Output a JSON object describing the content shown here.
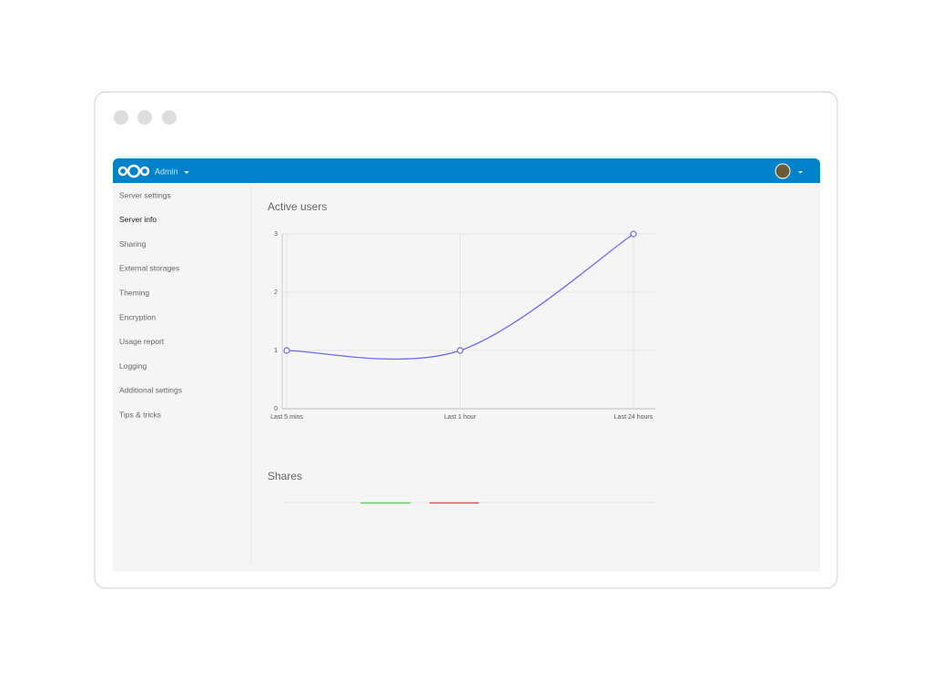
{
  "header": {
    "app": "Admin"
  },
  "sidebar": {
    "items": [
      "Server settings",
      "Server info",
      "Sharing",
      "External storages",
      "Theming",
      "Encryption",
      "Usage report",
      "Logging",
      "Additional settings",
      "Tips & tricks"
    ]
  },
  "chart_data": {
    "type": "line",
    "title": "Active users",
    "categories": [
      "Last 5 mins",
      "Last 1 hour",
      "Last 24 hours"
    ],
    "values": [
      1,
      1,
      3
    ],
    "color": "#6b6bef",
    "ylim": [
      0,
      3
    ],
    "yticks": [
      0,
      1,
      2,
      3
    ],
    "grid": true
  },
  "shares": {
    "title": "Shares"
  }
}
